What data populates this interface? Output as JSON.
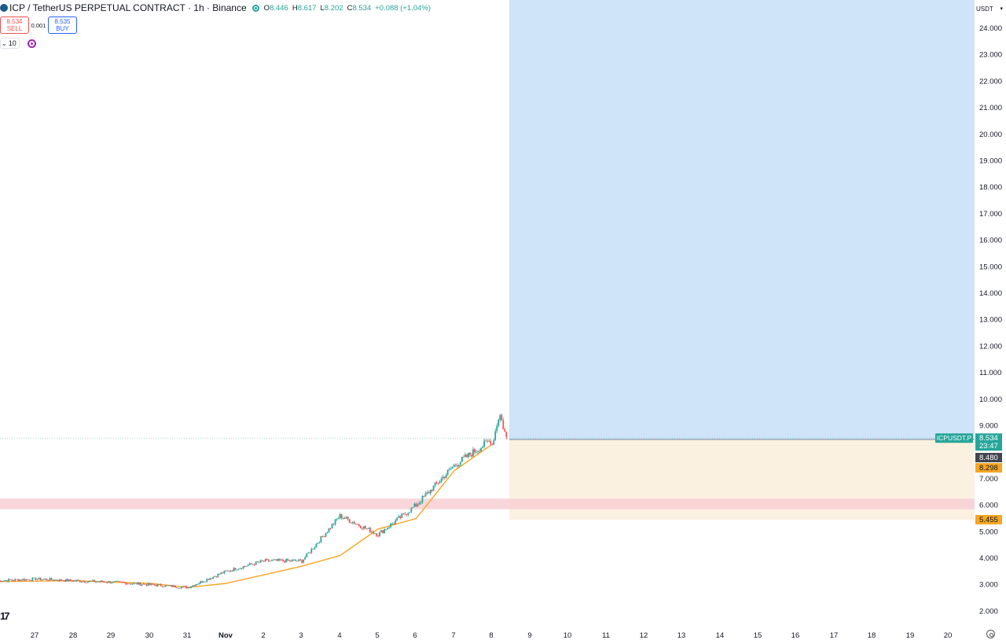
{
  "header": {
    "title": "ICP / TetherUS PERPETUAL CONTRACT · 1h · Binance",
    "ohlc": [
      {
        "label": "O",
        "value": "8.446"
      },
      {
        "label": "H",
        "value": "8.617"
      },
      {
        "label": "L",
        "value": "8.202"
      },
      {
        "label": "C",
        "value": "8.534"
      }
    ],
    "change": "+0.088 (+1.04%)"
  },
  "trade": {
    "sell_price": "8.534",
    "sell_label": "SELL",
    "spread": "0.001",
    "buy_price": "8.535",
    "buy_label": "BUY"
  },
  "indicator": {
    "length": "10"
  },
  "currency": "USDT",
  "colors": {
    "up": "#26a69a",
    "down": "#ef5350",
    "ma": "#f5a623",
    "target_zone": "#cfe3f9",
    "stop_zone": "#fbf1e0",
    "resistance_band": "#f8cfd3"
  },
  "chart_data": {
    "type": "candlestick",
    "symbol": "ICPUSDT.P",
    "timeframe": "1h",
    "yaxis": {
      "ticks": [
        "24.000",
        "23.000",
        "22.000",
        "21.000",
        "20.000",
        "19.000",
        "18.000",
        "17.000",
        "16.000",
        "15.000",
        "14.000",
        "13.000",
        "12.000",
        "11.000",
        "10.000",
        "9.000",
        "7.000",
        "6.000",
        "5.000",
        "4.000",
        "3.000",
        "2.000"
      ],
      "range": [
        1.5,
        24.9
      ]
    },
    "xaxis": {
      "ticks": [
        "27",
        "28",
        "29",
        "30",
        "31",
        "Nov",
        "2",
        "3",
        "4",
        "5",
        "6",
        "7",
        "8",
        "9",
        "10",
        "11",
        "12",
        "13",
        "14",
        "15",
        "16",
        "17",
        "18",
        "19",
        "20"
      ]
    },
    "series": [
      {
        "type": "candles",
        "approx_closes_by_day": [
          {
            "day": "Oct 26",
            "close": 3.15
          },
          {
            "day": "Oct 27",
            "close": 3.22
          },
          {
            "day": "Oct 28",
            "close": 3.15
          },
          {
            "day": "Oct 29",
            "close": 3.1
          },
          {
            "day": "Oct 30",
            "close": 3.0
          },
          {
            "day": "Oct 31",
            "close": 2.9
          },
          {
            "day": "Nov 1",
            "close": 3.5
          },
          {
            "day": "Nov 2",
            "close": 3.9
          },
          {
            "day": "Nov 3",
            "close": 3.9
          },
          {
            "day": "Nov 4",
            "close": 5.6
          },
          {
            "day": "Nov 5",
            "close": 4.9
          },
          {
            "day": "Nov 6",
            "close": 6.0
          },
          {
            "day": "Nov 7",
            "close": 7.5
          },
          {
            "day": "Nov 8",
            "close": 8.5
          }
        ]
      },
      {
        "type": "moving-average",
        "approx_values_by_day": [
          {
            "day": "Oct 26",
            "value": 3.12
          },
          {
            "day": "Oct 28",
            "value": 3.15
          },
          {
            "day": "Oct 30",
            "value": 3.05
          },
          {
            "day": "Oct 31",
            "value": 2.9
          },
          {
            "day": "Nov 1",
            "value": 3.05
          },
          {
            "day": "Nov 3",
            "value": 3.7
          },
          {
            "day": "Nov 4",
            "value": 4.1
          },
          {
            "day": "Nov 5",
            "value": 5.1
          },
          {
            "day": "Nov 6",
            "value": 5.5
          },
          {
            "day": "Nov 7",
            "value": 7.3
          },
          {
            "day": "Nov 8",
            "value": 8.3
          }
        ]
      }
    ],
    "position": {
      "entry": 8.48,
      "target": 24.9,
      "stop": 5.455
    },
    "resistance_band": [
      5.85,
      6.25
    ],
    "price_labels": {
      "symbol": "ICPUSDT.P",
      "last": "8.534",
      "countdown": "23:47",
      "entry": "8.480",
      "ma": "8.298",
      "stop": "5.455"
    }
  }
}
